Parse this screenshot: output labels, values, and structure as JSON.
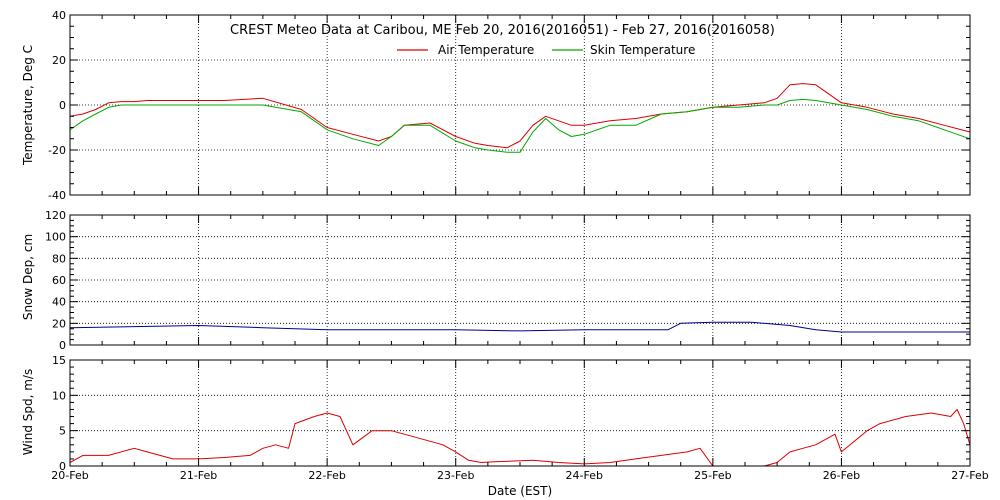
{
  "colors": {
    "air": "#dd0000",
    "skin": "#00aa00",
    "snow": "#00008b",
    "wind": "#dd0000",
    "frame": "#000000"
  },
  "chart_data": [
    {
      "type": "line",
      "title": "CREST Meteo Data at Caribou, ME   Feb 20, 2016(2016051) - Feb 27, 2016(2016058)",
      "ylabel": "Temperature, Deg C",
      "xlim": [
        "2016-02-20",
        "2016-02-27"
      ],
      "ylim": [
        -40,
        40
      ],
      "yticks": [
        -40,
        -20,
        0,
        20,
        40
      ],
      "grid": true,
      "legend_position": "top-center",
      "x_day_fraction": [
        0,
        0.1,
        0.2,
        0.3,
        0.4,
        0.5,
        0.6,
        0.7,
        0.8,
        0.9,
        1.0,
        1.2,
        1.5,
        1.8,
        2.0,
        2.2,
        2.4,
        2.5,
        2.6,
        2.8,
        3.0,
        3.15,
        3.25,
        3.4,
        3.5,
        3.6,
        3.7,
        3.8,
        3.9,
        4.0,
        4.2,
        4.4,
        4.6,
        4.8,
        5.0,
        5.2,
        5.4,
        5.5,
        5.6,
        5.7,
        5.8,
        6.0,
        6.2,
        6.4,
        6.6,
        6.8,
        7.0
      ],
      "series": [
        {
          "name": "Air Temperature",
          "color_key": "air",
          "values": [
            -5,
            -4,
            -2,
            1,
            1.5,
            1.5,
            2,
            2,
            2,
            2,
            2,
            2,
            3,
            -2,
            -10,
            -13,
            -16,
            -14,
            -9,
            -8,
            -14,
            -17,
            -18,
            -19,
            -16,
            -9,
            -5,
            -7,
            -9,
            -9,
            -7,
            -6,
            -4,
            -3,
            -1,
            0,
            1,
            3,
            9,
            9.5,
            9,
            1,
            -1,
            -4,
            -6,
            -9,
            -12
          ]
        },
        {
          "name": "Skin Temperature",
          "color_key": "skin",
          "values": [
            -11,
            -7,
            -4,
            -1,
            0,
            0,
            0,
            0,
            0,
            0,
            0,
            0,
            0,
            -3,
            -11,
            -15,
            -18,
            -14,
            -9,
            -9,
            -16,
            -19,
            -20,
            -21,
            -21,
            -12,
            -6,
            -11,
            -14,
            -13,
            -9,
            -9,
            -4,
            -3,
            -1,
            -1,
            0,
            0,
            2,
            2.5,
            2,
            0,
            -2,
            -5,
            -7,
            -11,
            -15
          ]
        }
      ],
      "x_tick_labels": [
        "20-Feb",
        "21-Feb",
        "22-Feb",
        "23-Feb",
        "24-Feb",
        "25-Feb",
        "26-Feb",
        "27-Feb"
      ]
    },
    {
      "type": "line",
      "ylabel": "Snow Dep, cm",
      "xlim": [
        "2016-02-20",
        "2016-02-27"
      ],
      "ylim": [
        0,
        120
      ],
      "yticks": [
        0,
        20,
        40,
        60,
        80,
        100,
        120
      ],
      "grid": true,
      "x_day_fraction": [
        0,
        0.5,
        1.0,
        1.5,
        2.0,
        2.5,
        3.0,
        3.5,
        4.0,
        4.5,
        4.65,
        4.75,
        5.0,
        5.3,
        5.6,
        5.8,
        6.0,
        6.5,
        7.0
      ],
      "series": [
        {
          "name": "",
          "color_key": "snow",
          "values": [
            16,
            17,
            18,
            16,
            14,
            14,
            14,
            13,
            14,
            14,
            14,
            20,
            21,
            21,
            18,
            14,
            12,
            12,
            12
          ]
        }
      ]
    },
    {
      "type": "line",
      "ylabel": "Wind Spd, m/s",
      "xlabel": "Date (EST)",
      "xlim": [
        "2016-02-20",
        "2016-02-27"
      ],
      "ylim": [
        0,
        15
      ],
      "yticks": [
        0,
        5,
        10,
        15
      ],
      "grid": true,
      "x_day_fraction": [
        0,
        0.1,
        0.3,
        0.5,
        0.6,
        0.8,
        1.0,
        1.2,
        1.4,
        1.5,
        1.6,
        1.7,
        1.75,
        1.9,
        2.0,
        2.1,
        2.2,
        2.35,
        2.5,
        2.7,
        2.9,
        3.0,
        3.1,
        3.2,
        3.3,
        3.6,
        3.8,
        4.0,
        4.2,
        4.4,
        4.6,
        4.8,
        4.9,
        5.0,
        5.2,
        5.4,
        5.5,
        5.6,
        5.7,
        5.8,
        5.95,
        6.0,
        6.2,
        6.3,
        6.5,
        6.7,
        6.85,
        6.9,
        6.95,
        7.0
      ],
      "series": [
        {
          "name": "",
          "color_key": "wind",
          "values": [
            0.5,
            1.5,
            1.5,
            2.5,
            2,
            1,
            1,
            1.2,
            1.5,
            2.5,
            3,
            2.5,
            6,
            7,
            7.5,
            7,
            3,
            5,
            5,
            4,
            3,
            2,
            0.8,
            0.5,
            0.6,
            0.8,
            0.5,
            0.3,
            0.5,
            1,
            1.5,
            2,
            2.5,
            0,
            0,
            0,
            0.5,
            2,
            2.5,
            3,
            4.5,
            2,
            5,
            6,
            7,
            7.5,
            7,
            8,
            6,
            3
          ]
        }
      ]
    }
  ]
}
